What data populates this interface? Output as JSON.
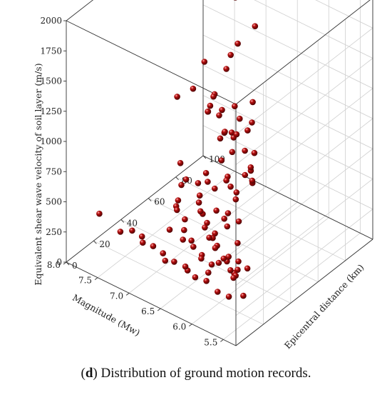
{
  "caption": {
    "prefix": "(",
    "letter": "d",
    "rest": ") Distribution of ground motion records."
  },
  "colors": {
    "point": "#b50d0d",
    "grid": "#cfcfcf",
    "axis": "#333333"
  },
  "chart_data": {
    "type": "scatter",
    "projection": "3d",
    "grid": true,
    "xlabel": "Magnitude (Mw)",
    "ylabel": "Epicentral distance (km)",
    "zlabel": "Equivalent shear wave velocity of soil layer (m/s)",
    "xlim": [
      5.3,
      8.0
    ],
    "ylim": [
      0,
      100
    ],
    "zlim": [
      0,
      2000
    ],
    "x_ticks": [
      "5.5",
      "6.0",
      "6.5",
      "7.0",
      "7.5",
      "8.0"
    ],
    "y_ticks": [
      "0",
      "20",
      "40",
      "60",
      "80",
      "100"
    ],
    "z_ticks": [
      "0",
      "250",
      "500",
      "750",
      "1000",
      "1250",
      "1500",
      "1750",
      "2000"
    ],
    "points": [
      [
        5.4,
        10,
        300
      ],
      [
        5.4,
        13,
        500
      ],
      [
        5.5,
        11,
        550
      ],
      [
        5.5,
        9,
        450
      ],
      [
        5.6,
        12,
        380
      ],
      [
        5.6,
        15,
        420
      ],
      [
        5.7,
        13,
        520
      ],
      [
        5.7,
        17,
        350
      ],
      [
        5.8,
        14,
        470
      ],
      [
        5.8,
        19,
        330
      ],
      [
        5.9,
        15,
        400
      ],
      [
        5.9,
        21,
        360
      ],
      [
        6.0,
        17,
        480
      ],
      [
        6.0,
        12,
        320
      ],
      [
        6.1,
        19,
        300
      ],
      [
        6.1,
        23,
        420
      ],
      [
        6.2,
        16,
        350
      ],
      [
        6.2,
        26,
        470
      ],
      [
        6.3,
        21,
        310
      ],
      [
        6.3,
        29,
        380
      ],
      [
        6.4,
        18,
        430
      ],
      [
        6.4,
        31,
        340
      ],
      [
        6.5,
        24,
        300
      ],
      [
        6.5,
        34,
        410
      ],
      [
        6.6,
        21,
        360
      ],
      [
        6.6,
        37,
        320
      ],
      [
        6.7,
        27,
        450
      ],
      [
        6.7,
        40,
        380
      ],
      [
        6.8,
        31,
        300
      ],
      [
        6.8,
        43,
        350
      ],
      [
        6.9,
        25,
        330
      ],
      [
        6.9,
        47,
        420
      ],
      [
        7.0,
        35,
        380
      ],
      [
        7.0,
        51,
        300
      ],
      [
        7.1,
        39,
        350
      ],
      [
        7.1,
        55,
        400
      ],
      [
        7.2,
        45,
        320
      ],
      [
        7.3,
        52,
        360
      ],
      [
        7.4,
        60,
        310
      ],
      [
        7.6,
        65,
        350
      ],
      [
        5.5,
        4,
        320
      ],
      [
        5.7,
        5,
        300
      ],
      [
        5.9,
        6,
        330
      ],
      [
        6.1,
        7,
        300
      ],
      [
        6.3,
        9,
        320
      ],
      [
        6.5,
        10,
        300
      ],
      [
        6.7,
        11,
        310
      ],
      [
        6.9,
        13,
        300
      ],
      [
        7.1,
        14,
        320
      ],
      [
        7.3,
        16,
        300
      ],
      [
        6.2,
        6,
        340
      ],
      [
        6.6,
        8,
        300
      ],
      [
        7.0,
        10,
        330
      ],
      [
        7.4,
        12,
        300
      ],
      [
        7.8,
        15,
        320
      ],
      [
        6.4,
        42,
        400
      ],
      [
        6.7,
        50,
        320
      ],
      [
        6.9,
        58,
        380
      ],
      [
        7.1,
        62,
        350
      ],
      [
        7.3,
        70,
        300
      ],
      [
        6.5,
        55,
        420
      ],
      [
        6.8,
        65,
        360
      ],
      [
        7.0,
        72,
        330
      ],
      [
        6.3,
        48,
        350
      ],
      [
        6.1,
        38,
        310
      ],
      [
        5.6,
        8,
        950
      ],
      [
        5.7,
        12,
        780
      ],
      [
        5.8,
        16,
        1100
      ],
      [
        5.5,
        20,
        1250
      ],
      [
        5.9,
        28,
        1350
      ],
      [
        6.3,
        3,
        1780
      ],
      [
        6.2,
        10,
        1810
      ],
      [
        6.0,
        22,
        1580
      ],
      [
        6.1,
        34,
        1100
      ],
      [
        6.4,
        40,
        900
      ],
      [
        6.2,
        48,
        760
      ],
      [
        6.5,
        52,
        1000
      ],
      [
        6.6,
        58,
        880
      ],
      [
        6.9,
        62,
        760
      ],
      [
        7.0,
        70,
        720
      ],
      [
        7.2,
        75,
        760
      ],
      [
        7.4,
        80,
        820
      ],
      [
        7.6,
        90,
        700
      ],
      [
        7.5,
        94,
        900
      ],
      [
        7.3,
        88,
        1120
      ],
      [
        7.1,
        84,
        1300
      ],
      [
        7.4,
        96,
        1500
      ],
      [
        7.7,
        98,
        1540
      ],
      [
        7.0,
        92,
        1400
      ],
      [
        7.5,
        78,
        1100
      ],
      [
        6.8,
        68,
        1000
      ],
      [
        6.6,
        72,
        1050
      ],
      [
        6.4,
        64,
        750
      ],
      [
        7.6,
        85,
        600
      ],
      [
        7.8,
        96,
        500
      ],
      [
        7.9,
        99,
        400
      ],
      [
        7.2,
        90,
        600
      ],
      [
        6.9,
        82,
        650
      ],
      [
        6.7,
        76,
        820
      ],
      [
        6.5,
        66,
        560
      ],
      [
        6.3,
        58,
        580
      ],
      [
        6.9,
        80,
        500
      ],
      [
        7.4,
        88,
        450
      ],
      [
        5.4,
        5,
        1200
      ],
      [
        6.0,
        44,
        800
      ]
    ]
  }
}
